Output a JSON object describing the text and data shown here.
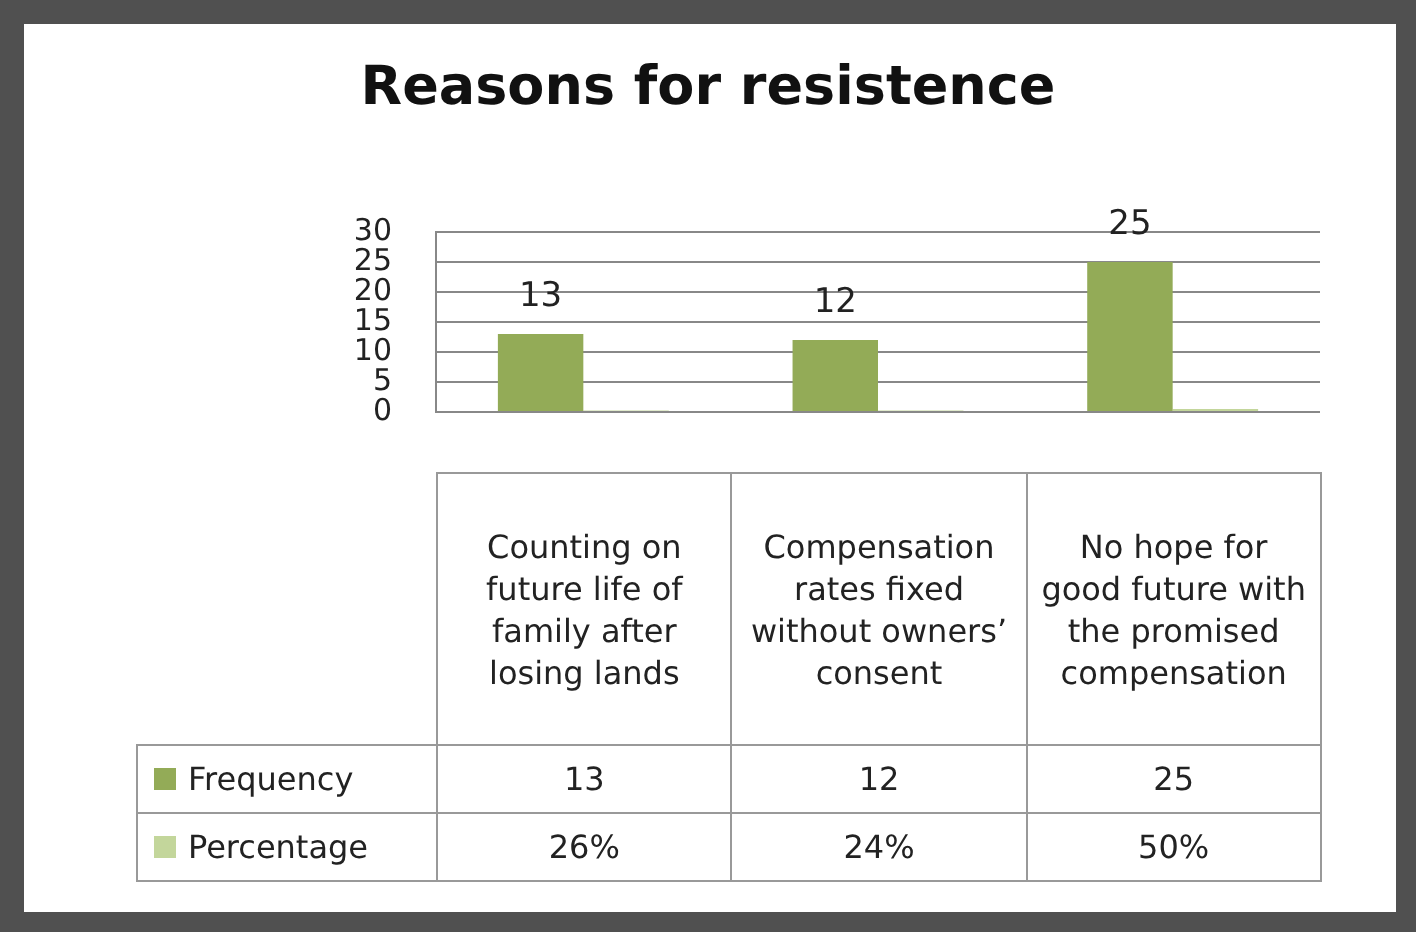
{
  "chart_data": {
    "type": "bar",
    "title": "Reasons for resistence",
    "categories": [
      "Counting on future life of  family after losing lands",
      "Compensation rates fixed without owners’ consent",
      "No hope for good future with the promised compensation"
    ],
    "series": [
      {
        "name": "Frequency",
        "color": "#93ab57",
        "values": [
          13,
          12,
          25
        ],
        "value_labels": [
          "13",
          "12",
          "25"
        ]
      },
      {
        "name": "Percentage",
        "color": "#c3d69b",
        "values": [
          0.26,
          0.24,
          0.5
        ],
        "value_labels": [
          "26%",
          "24%",
          "50%"
        ]
      }
    ],
    "ylim": [
      0,
      30
    ],
    "yticks": [
      0,
      5,
      10,
      15,
      20,
      25,
      30
    ],
    "grid": "y",
    "legend": "bottom left"
  }
}
